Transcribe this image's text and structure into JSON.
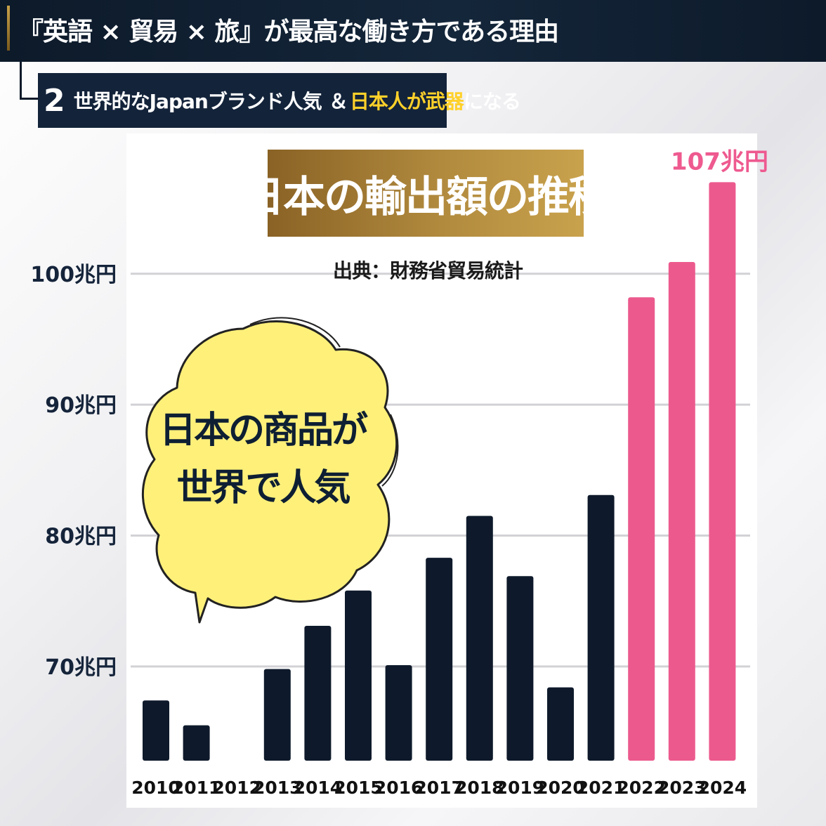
{
  "header": {
    "title": "『英語 × 貿易 × 旅』が最高な働き方である理由",
    "sub_number": "2",
    "sub_text1": "世界的なJapanブランド人気",
    "sub_amp": "＆",
    "sub_text2": "日本人が武器",
    "sub_text3": "になる"
  },
  "source": "出典：財務省貿易統計",
  "bubble": {
    "line1": "日本の商品が",
    "line2": "世界で人気"
  },
  "colors": {
    "bar_dark": "#0e1a2b",
    "bar_highlight": "#ec5a8d",
    "title_gold": "#b18a3e",
    "bubble_fill": "#fff07a"
  },
  "chart_data": {
    "type": "bar",
    "title": "日本の輸出額の推移",
    "categories": [
      "2010",
      "2011",
      "2012",
      "2013",
      "2014",
      "2015",
      "2016",
      "2017",
      "2018",
      "2019",
      "2020",
      "2021",
      "2022",
      "2023",
      "2024"
    ],
    "values": [
      67.4,
      65.5,
      null,
      69.8,
      73.1,
      75.8,
      70.1,
      78.3,
      81.5,
      76.9,
      68.4,
      83.1,
      98.2,
      100.9,
      107
    ],
    "highlight": [
      false,
      false,
      false,
      false,
      false,
      false,
      false,
      false,
      false,
      false,
      false,
      false,
      true,
      true,
      true
    ],
    "y_ticks": [
      70,
      80,
      90,
      100
    ],
    "y_tick_labels": [
      "70兆円",
      "80兆円",
      "90兆円",
      "100兆円"
    ],
    "ylim": [
      62.8,
      107.5
    ],
    "grid": true,
    "data_labels": [
      {
        "index": 14,
        "text": "107兆円"
      }
    ]
  }
}
